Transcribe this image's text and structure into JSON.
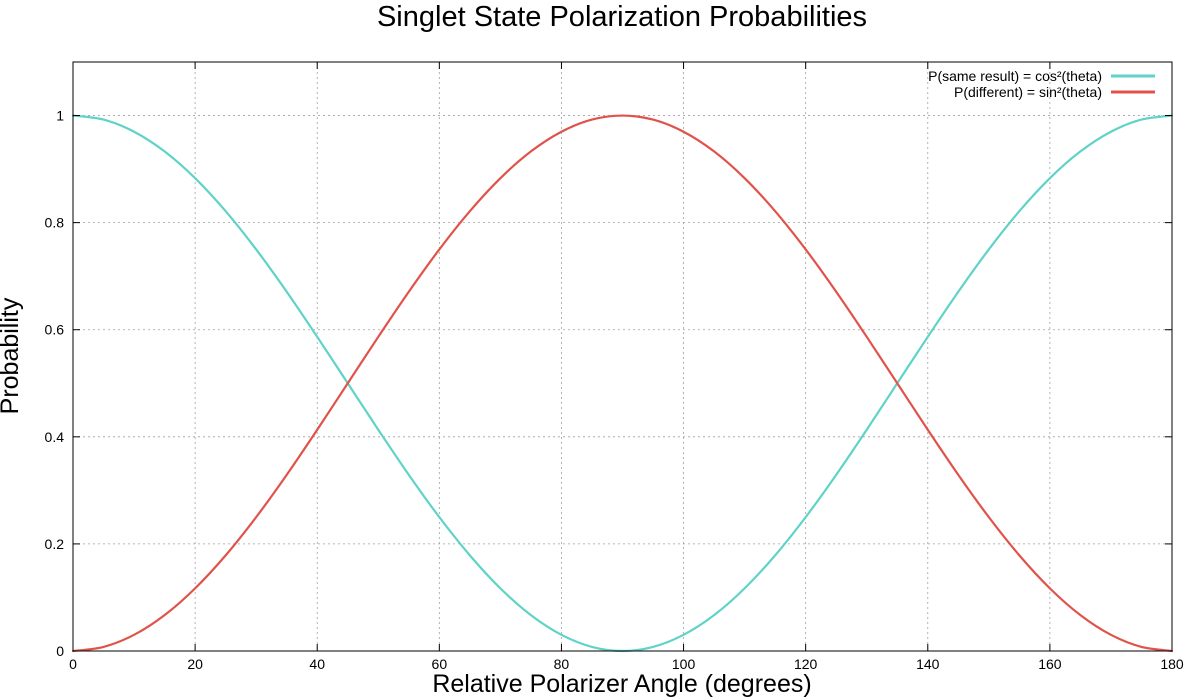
{
  "chart_data": {
    "type": "line",
    "title": "Singlet State Polarization Probabilities",
    "xlabel": "Relative Polarizer Angle (degrees)",
    "ylabel": "Probability",
    "xlim": [
      0,
      180
    ],
    "ylim": [
      0,
      1.1
    ],
    "xticks": [
      0,
      20,
      40,
      60,
      80,
      100,
      120,
      140,
      160,
      180
    ],
    "yticks": [
      0,
      0.2,
      0.4,
      0.6,
      0.8,
      1
    ],
    "grid": true,
    "legend_position": "top-right",
    "x": [
      0,
      5,
      10,
      15,
      20,
      25,
      30,
      35,
      40,
      45,
      50,
      55,
      60,
      65,
      70,
      75,
      80,
      85,
      90,
      95,
      100,
      105,
      110,
      115,
      120,
      125,
      130,
      135,
      140,
      145,
      150,
      155,
      160,
      165,
      170,
      175,
      180
    ],
    "series": [
      {
        "name": "P(same result) = cos²(theta)",
        "color": "#5fd3c8",
        "values": [
          1.0,
          0.9924,
          0.9698,
          0.933,
          0.883,
          0.8214,
          0.75,
          0.671,
          0.5868,
          0.5,
          0.4132,
          0.329,
          0.25,
          0.1786,
          0.117,
          0.067,
          0.0302,
          0.0076,
          0.0,
          0.0076,
          0.0302,
          0.067,
          0.117,
          0.1786,
          0.25,
          0.329,
          0.4132,
          0.5,
          0.5868,
          0.671,
          0.75,
          0.8214,
          0.883,
          0.933,
          0.9698,
          0.9924,
          1.0
        ]
      },
      {
        "name": "P(different) = sin²(theta)",
        "color": "#e0534a",
        "values": [
          0.0,
          0.0076,
          0.0302,
          0.067,
          0.117,
          0.1786,
          0.25,
          0.329,
          0.4132,
          0.5,
          0.5868,
          0.671,
          0.75,
          0.8214,
          0.883,
          0.933,
          0.9698,
          0.9924,
          1.0,
          0.9924,
          0.9698,
          0.933,
          0.883,
          0.8214,
          0.75,
          0.671,
          0.5868,
          0.5,
          0.4132,
          0.329,
          0.25,
          0.1786,
          0.117,
          0.067,
          0.0302,
          0.0076,
          0.0
        ]
      }
    ]
  }
}
